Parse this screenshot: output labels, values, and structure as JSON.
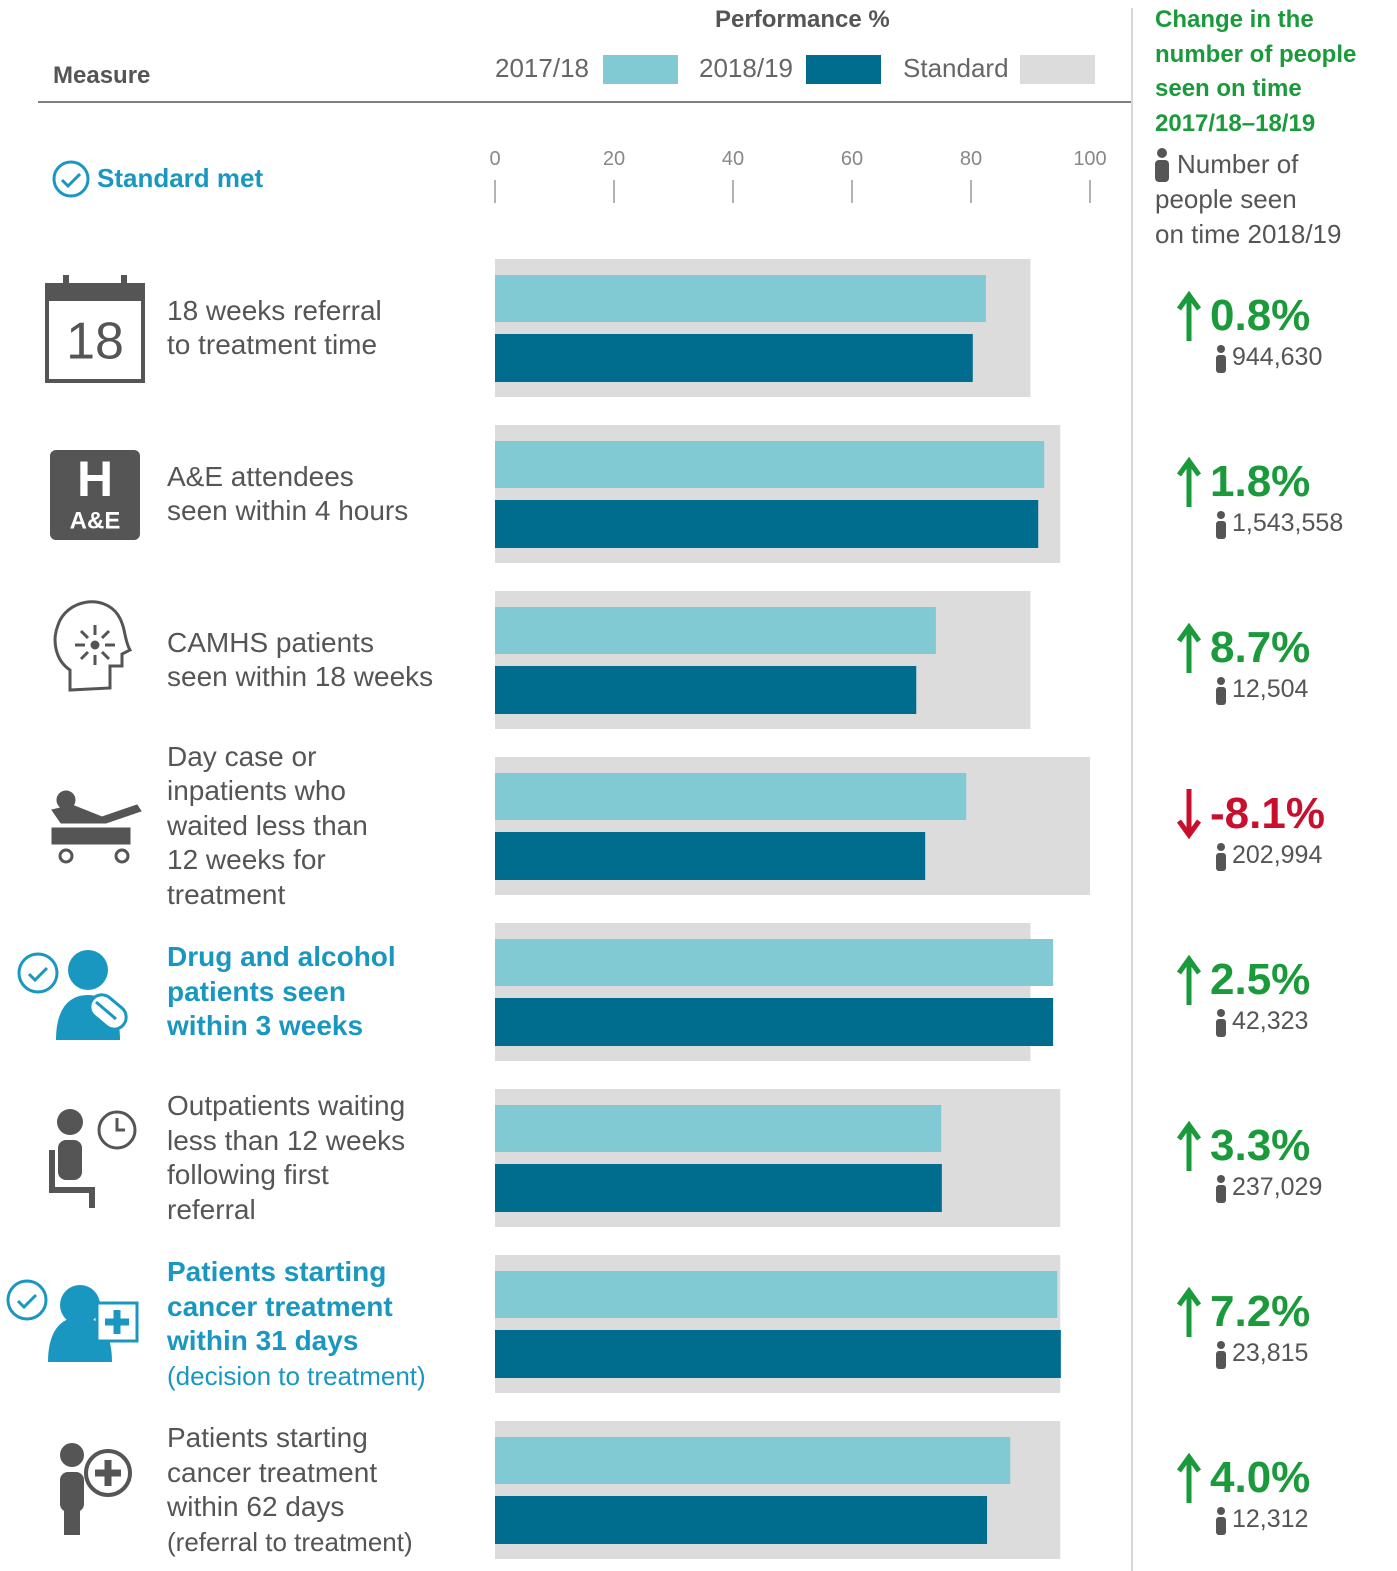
{
  "chart_data": {
    "type": "bar",
    "orientation": "horizontal",
    "title": "Performance %",
    "category_header": "Measure",
    "standard_met_label": "Standard met",
    "categories": [
      "18 weeks referral\nto treatment time",
      "A&E attendees\nseen within 4 hours",
      "CAMHS patients\nseen within 18 weeks",
      "Day case or\ninpatients who\nwaited less than\n12 weeks for\ntreatment",
      "Drug and alcohol\npatients seen\nwithin 3 weeks",
      "Outpatients waiting\nless than 12 weeks\nfollowing first\nreferral",
      "Patients starting\ncancer treatment\nwithin 31 days",
      "Patients starting\ncancer treatment\nwithin 62 days"
    ],
    "category_notes": [
      null,
      null,
      null,
      null,
      null,
      null,
      "(decision to treatment)",
      "(referral to treatment)"
    ],
    "standard_met": [
      false,
      false,
      false,
      false,
      true,
      false,
      true,
      false
    ],
    "met_color": "#1a97c1",
    "series": [
      {
        "name": "2017/18",
        "color": "#82cad3",
        "values": [
          82.5,
          92.3,
          74.1,
          79.2,
          93.8,
          75.0,
          94.5,
          86.6
        ]
      },
      {
        "name": "2018/19",
        "color": "#006c8e",
        "values": [
          80.3,
          91.3,
          70.8,
          72.3,
          93.8,
          75.1,
          95.1,
          82.7
        ]
      },
      {
        "name": "Standard",
        "color": "#dcdcdc",
        "values": [
          90,
          95,
          90,
          100,
          90,
          95,
          95,
          95
        ]
      }
    ],
    "xlim": [
      0,
      100
    ],
    "xticks": [
      0,
      20,
      40,
      60,
      80,
      100
    ],
    "change": {
      "title": "Change in the\nnumber of people\nseen on time\n2017/18–18/19",
      "subtitle": "Number of\npeople seen\non time 2018/19",
      "up_color": "#1a9a3a",
      "down_color": "#c8102e",
      "values": [
        0.8,
        1.8,
        8.7,
        -8.1,
        2.5,
        3.3,
        7.2,
        4.0
      ],
      "value_labels": [
        "0.8%",
        "1.8%",
        "8.7%",
        "-8.1%",
        "2.5%",
        "3.3%",
        "7.2%",
        "4.0%"
      ],
      "counts": [
        944630,
        1543558,
        12504,
        202994,
        42323,
        237029,
        23815,
        12312
      ],
      "count_labels": [
        "944,630",
        "1,543,558",
        "12,504",
        "202,994",
        "42,323",
        "237,029",
        "23,815",
        "12,312"
      ]
    }
  },
  "icon_labels": {
    "calendar": "18",
    "hospital": "H",
    "hospital_sub": "A&E"
  }
}
